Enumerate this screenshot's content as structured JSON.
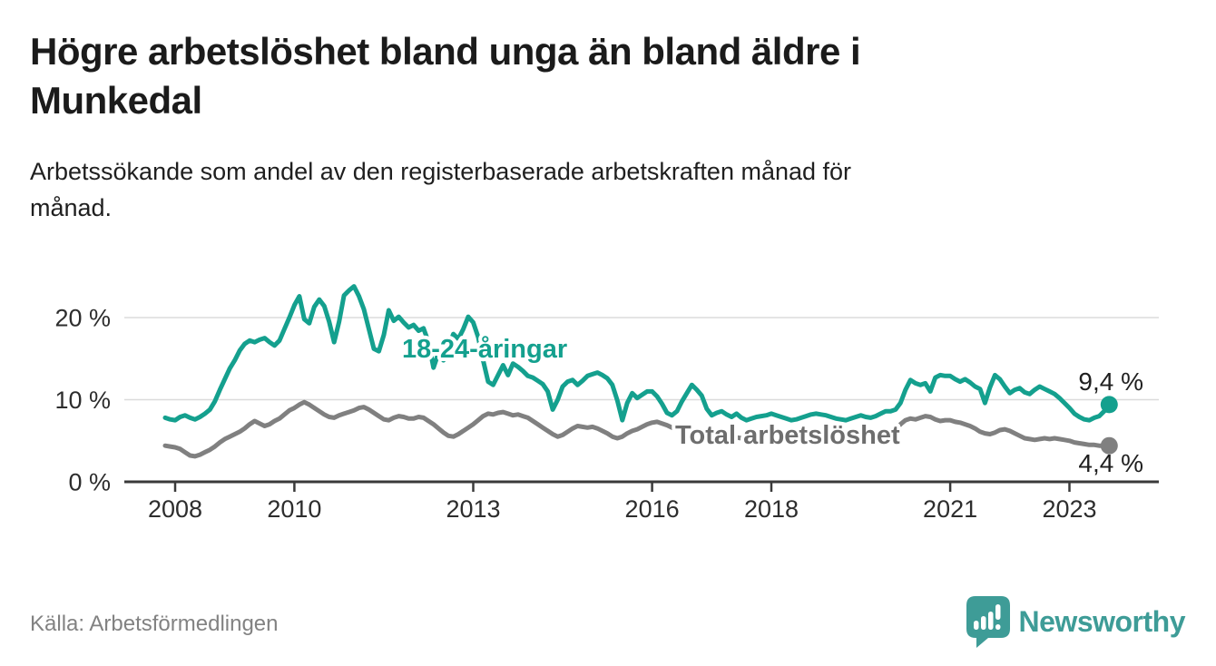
{
  "header": {
    "title_lines": [
      "Högre arbetslöshet bland unga än bland äldre i",
      "Munkedal"
    ],
    "subtitle_lines": [
      "Arbetssökande som andel av den registerbaserade arbetskraften månad för",
      "månad."
    ]
  },
  "footer": {
    "source_label": "Källa: Arbetsförmedlingen",
    "brand_name": "Newsworthy",
    "brand_icon": "newsworthy-speech-bubble-bar-chart",
    "brand_color": "#3E9C97"
  },
  "colors": {
    "accent_teal": "#14A08E",
    "line_gray": "#808080",
    "label_gray": "#6E6E6E",
    "grid": "#DBDBDB",
    "axis": "#3A3A3A",
    "tick_text": "#2D2D2D",
    "value_text": "#1F1F1F",
    "halo": "#FFFFFF"
  },
  "chart_data": {
    "type": "line",
    "unit": "percent",
    "frequency": "monthly",
    "start": "2007-11",
    "end": "2023-09",
    "ylim": [
      0,
      25
    ],
    "grid": "horizontal",
    "legend_position": "inline-labels",
    "yticks": [
      {
        "value": 0,
        "label": "0 %"
      },
      {
        "value": 10,
        "label": "10 %"
      },
      {
        "value": 20,
        "label": "20 %"
      }
    ],
    "xticks": [
      {
        "value": 2008,
        "label": "2008"
      },
      {
        "value": 2010,
        "label": "2010"
      },
      {
        "value": 2013,
        "label": "2013"
      },
      {
        "value": 2016,
        "label": "2016"
      },
      {
        "value": 2018,
        "label": "2018"
      },
      {
        "value": 2021,
        "label": "2021"
      },
      {
        "value": 2023,
        "label": "2023"
      }
    ],
    "series": [
      {
        "name": "18-24-åringar",
        "color": "#14A08E",
        "label_color": "#14A08E",
        "end_label": "9,4 %",
        "end_value": 9.4,
        "values": [
          7.8,
          7.6,
          7.5,
          7.9,
          8.1,
          7.8,
          7.6,
          7.9,
          8.3,
          8.8,
          9.8,
          11.2,
          12.5,
          13.8,
          14.8,
          16.0,
          16.8,
          17.2,
          17.0,
          17.3,
          17.5,
          17.0,
          16.6,
          17.2,
          18.6,
          20.0,
          21.5,
          22.6,
          19.8,
          19.3,
          21.3,
          22.2,
          21.4,
          19.5,
          17.0,
          19.5,
          22.7,
          23.3,
          23.8,
          22.6,
          21.0,
          18.6,
          16.2,
          15.9,
          17.9,
          20.9,
          19.6,
          20.1,
          19.4,
          18.8,
          19.1,
          18.4,
          18.7,
          17.0,
          13.9,
          15.7,
          14.8,
          16.4,
          18.0,
          17.4,
          18.6,
          20.1,
          19.4,
          17.6,
          14.8,
          12.2,
          11.8,
          13.0,
          14.2,
          13.0,
          14.4,
          14.0,
          13.5,
          12.9,
          12.7,
          12.3,
          11.9,
          11.0,
          8.8,
          10.0,
          11.6,
          12.2,
          12.4,
          11.8,
          12.3,
          12.9,
          13.1,
          13.3,
          13.0,
          12.6,
          11.8,
          9.9,
          7.5,
          9.6,
          10.8,
          10.2,
          10.6,
          11.0,
          11.0,
          10.4,
          9.5,
          8.4,
          8.1,
          8.6,
          9.8,
          10.8,
          11.8,
          11.2,
          10.5,
          8.9,
          8.1,
          8.4,
          8.6,
          8.2,
          7.9,
          8.3,
          7.8,
          7.5,
          7.7,
          7.9,
          8.0,
          8.1,
          8.3,
          8.1,
          7.9,
          7.7,
          7.5,
          7.6,
          7.8,
          8.0,
          8.2,
          8.3,
          8.2,
          8.1,
          7.9,
          7.7,
          7.6,
          7.5,
          7.7,
          7.9,
          8.1,
          7.9,
          7.8,
          8.0,
          8.3,
          8.6,
          8.6,
          8.8,
          9.6,
          11.2,
          12.4,
          12.0,
          11.8,
          12.0,
          11.0,
          12.7,
          13.0,
          12.9,
          12.9,
          12.5,
          12.2,
          12.5,
          12.1,
          11.6,
          11.3,
          9.6,
          11.5,
          13.0,
          12.5,
          11.6,
          10.8,
          11.2,
          11.4,
          10.9,
          10.7,
          11.2,
          11.6,
          11.3,
          11.0,
          10.7,
          10.2,
          9.6,
          9.0,
          8.3,
          7.9,
          7.6,
          7.5,
          7.8,
          8.0,
          8.6,
          9.4
        ]
      },
      {
        "name": "Total arbetslöshet",
        "color": "#808080",
        "label_color": "#6E6E6E",
        "end_label": "4,4 %",
        "end_value": 4.4,
        "values": [
          4.4,
          4.3,
          4.2,
          4.0,
          3.6,
          3.2,
          3.1,
          3.3,
          3.6,
          3.9,
          4.3,
          4.8,
          5.2,
          5.5,
          5.8,
          6.1,
          6.5,
          7.0,
          7.4,
          7.1,
          6.8,
          7.0,
          7.4,
          7.7,
          8.2,
          8.7,
          9.0,
          9.4,
          9.7,
          9.4,
          9.0,
          8.6,
          8.2,
          7.9,
          7.8,
          8.1,
          8.3,
          8.5,
          8.7,
          9.0,
          9.1,
          8.8,
          8.4,
          8.0,
          7.6,
          7.5,
          7.8,
          8.0,
          7.9,
          7.7,
          7.7,
          7.9,
          7.8,
          7.4,
          7.0,
          6.5,
          6.0,
          5.6,
          5.5,
          5.8,
          6.2,
          6.6,
          7.0,
          7.5,
          8.0,
          8.3,
          8.2,
          8.4,
          8.5,
          8.3,
          8.1,
          8.2,
          8.0,
          7.8,
          7.4,
          7.0,
          6.6,
          6.2,
          5.8,
          5.5,
          5.7,
          6.1,
          6.5,
          6.8,
          6.7,
          6.6,
          6.7,
          6.5,
          6.2,
          5.9,
          5.5,
          5.3,
          5.5,
          5.9,
          6.2,
          6.4,
          6.7,
          7.0,
          7.2,
          7.3,
          7.1,
          6.9,
          6.6,
          6.4,
          6.3,
          6.1,
          5.9,
          6.0,
          6.1,
          5.9,
          5.9,
          6.0,
          5.8,
          5.6,
          5.5,
          5.4,
          5.3,
          5.2,
          5.3,
          5.2,
          5.1,
          5.1,
          5.1,
          5.2,
          5.1,
          5.0,
          4.9,
          4.8,
          4.8,
          4.9,
          5.0,
          4.9,
          4.9,
          5.0,
          5.0,
          5.1,
          5.0,
          5.0,
          5.1,
          5.2,
          5.3,
          5.2,
          5.3,
          5.4,
          5.5,
          5.6,
          5.8,
          6.3,
          7.0,
          7.5,
          7.7,
          7.6,
          7.8,
          8.0,
          7.9,
          7.6,
          7.4,
          7.5,
          7.5,
          7.3,
          7.2,
          7.0,
          6.8,
          6.5,
          6.1,
          5.9,
          5.8,
          6.0,
          6.3,
          6.4,
          6.2,
          5.9,
          5.6,
          5.3,
          5.2,
          5.1,
          5.2,
          5.3,
          5.2,
          5.3,
          5.2,
          5.1,
          5.0,
          4.8,
          4.7,
          4.6,
          4.5,
          4.5,
          4.4,
          4.4,
          4.4
        ]
      }
    ]
  }
}
